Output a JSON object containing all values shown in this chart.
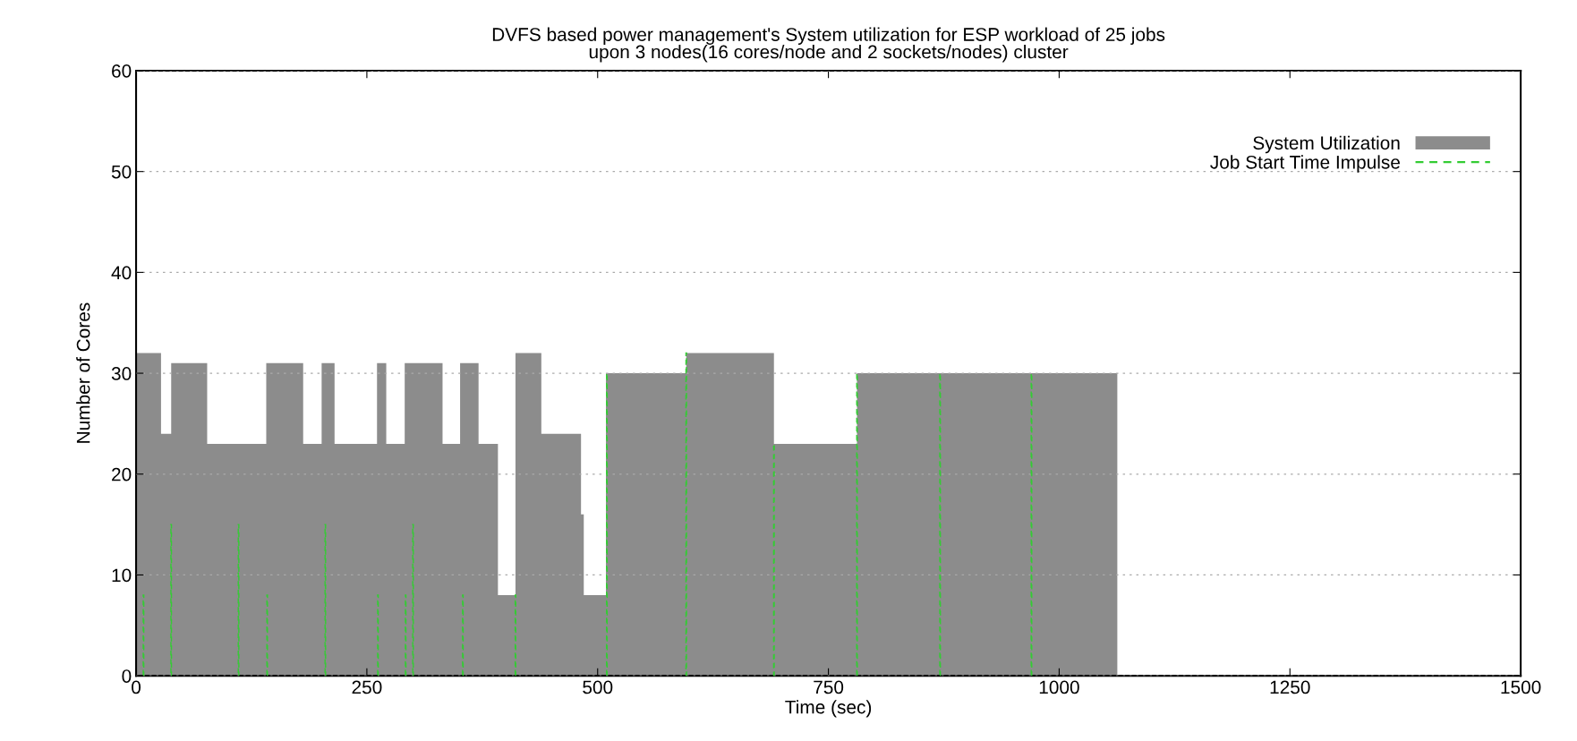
{
  "chart_data": {
    "type": "area",
    "title": "DVFS based power management's System utilization for ESP workload of 25 jobs\nupon 3 nodes(16 cores/node and 2 sockets/nodes) cluster",
    "xlabel": "Time (sec)",
    "ylabel": "Number of Cores",
    "xlim": [
      0,
      1500
    ],
    "xticks": [
      0,
      250,
      500,
      750,
      1000,
      1250,
      1500
    ],
    "ylim": [
      0,
      60
    ],
    "yticks": [
      0,
      10,
      20,
      30,
      40,
      50,
      60
    ],
    "grid": "y",
    "legend": "top right",
    "series": [
      {
        "name": "System Utilization",
        "color": "#8c8c8c",
        "x": [
          0,
          27,
          38,
          77,
          141,
          181,
          201,
          215,
          261,
          271,
          291,
          332,
          351,
          371,
          392,
          411,
          439,
          482,
          485,
          509,
          596,
          691,
          781,
          1063
        ],
        "values": [
          32,
          24,
          31,
          23,
          31,
          23,
          31,
          23,
          31,
          23,
          31,
          23,
          31,
          23,
          8,
          32,
          24,
          16,
          8,
          30,
          32,
          23,
          30,
          30
        ]
      },
      {
        "name": "Job Start Time Impulse",
        "type": "bar",
        "color": "#33cc33",
        "line_style": "dashed",
        "x": [
          8,
          38,
          111,
          142,
          205,
          262,
          292,
          300,
          354,
          411,
          510,
          596,
          691,
          781,
          871,
          970
        ],
        "values": [
          8,
          15,
          15,
          8,
          15,
          8,
          8,
          15,
          8,
          8,
          30,
          32,
          23,
          30,
          30,
          30
        ]
      }
    ]
  }
}
